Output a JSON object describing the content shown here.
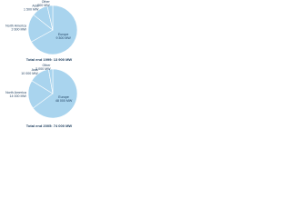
{
  "chart_data": [
    {
      "type": "pie",
      "title": "Total end 1999: 13 900 MW",
      "categories": [
        "Europe",
        "North America",
        "Asia",
        "Other"
      ],
      "values": [
        9300,
        2600,
        1500,
        500
      ],
      "value_labels": [
        "9 300 MW",
        "2 600 MW",
        "1 500 MW",
        "500 MW"
      ],
      "color": "#a9d4ee"
    },
    {
      "type": "pie",
      "title": "Total end 2005: 74 000 MW",
      "categories": [
        "Europe",
        "North America",
        "Asia",
        "Other"
      ],
      "values": [
        48000,
        14000,
        10000,
        2000
      ],
      "value_labels": [
        "48 000 MW",
        "14 000 MW",
        "10 000 MW",
        "2 000 MW"
      ],
      "color": "#a9d4ee"
    }
  ]
}
